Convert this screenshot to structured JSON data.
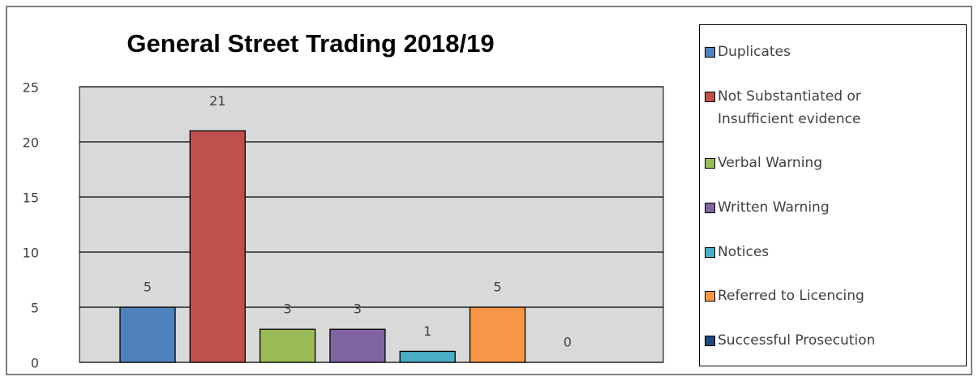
{
  "chart_data": {
    "type": "bar",
    "title": "General Street Trading 2018/19",
    "categories": [
      "Duplicates",
      "Not Substantiated or Insufficient evidence",
      "Verbal Warning",
      "Written Warning",
      "Notices",
      "Referred to Licencing",
      "Successful Prosecution"
    ],
    "values": [
      5,
      21,
      3,
      3,
      1,
      5,
      0
    ],
    "colors": [
      "#4f81bd",
      "#c0504d",
      "#9bbb59",
      "#8064a2",
      "#4bacc6",
      "#f79646",
      "#1f497d"
    ],
    "ylim": [
      0,
      25
    ],
    "yticks": [
      0,
      5,
      10,
      15,
      20,
      25
    ],
    "grid": true,
    "legend": "right"
  }
}
